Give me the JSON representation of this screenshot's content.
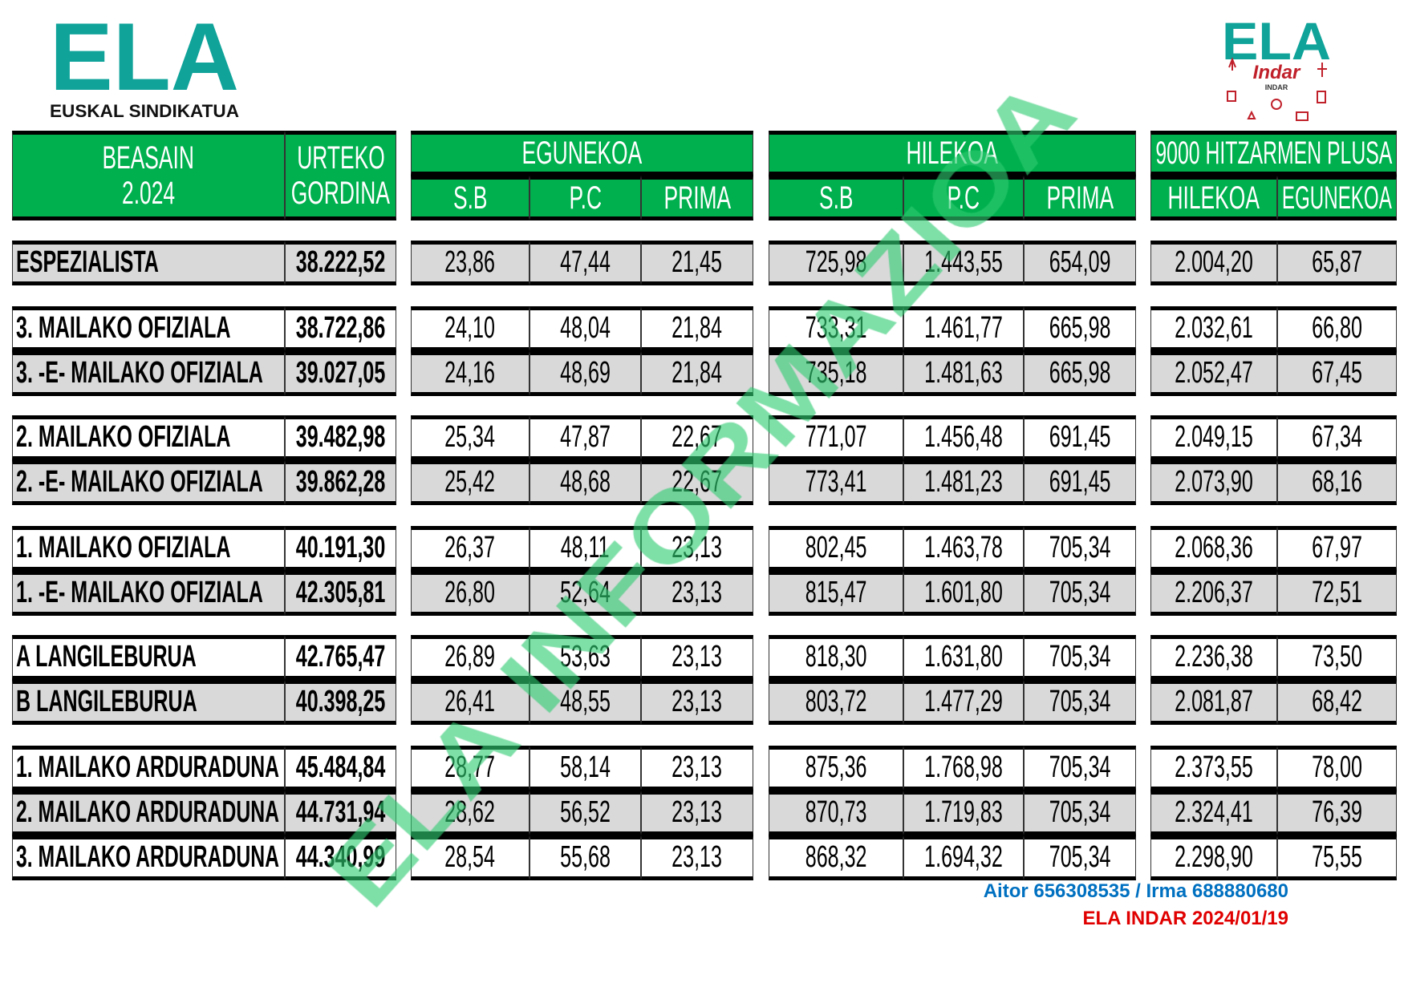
{
  "logo_left": {
    "text": "ELA",
    "subtitle": "EUSKAL SINDIKATUA"
  },
  "logo_right": {
    "text": "ELA",
    "subtitle": "Indar",
    "small": "INDAR"
  },
  "colors": {
    "header_green": "#00b04f",
    "logo_teal": "#0fa39a",
    "row_gray": "#d9d9d9",
    "watermark_green": "#2ecc71",
    "footer_blue": "#0070c0",
    "footer_red": "#e00000"
  },
  "header": {
    "group1": {
      "title_line1": "BEASAIN",
      "title_line2": "2.024",
      "col2_line1": "URTEKO",
      "col2_line2": "GORDINA"
    },
    "group2": {
      "title": "EGUNEKOA",
      "cols": [
        "S.B",
        "P.C",
        "PRIMA"
      ]
    },
    "group3": {
      "title": "HILEKOA",
      "cols": [
        "S.B",
        "P.C",
        "PRIMA"
      ]
    },
    "group4": {
      "title": "9000 HITZARMEN PLUSA",
      "cols": [
        "HILEKOA",
        "EGUNEKOA"
      ]
    }
  },
  "rows": [
    {
      "name": "ESPEZIALISTA",
      "urteko": "38.222,52",
      "eg": [
        "23,86",
        "47,44",
        "21,45"
      ],
      "hil": [
        "725,98",
        "1.443,55",
        "654,09"
      ],
      "plus": [
        "2.004,20",
        "65,87"
      ],
      "shade": "gray"
    },
    {
      "name": "3. MAILAKO OFIZIALA",
      "urteko": "38.722,86",
      "eg": [
        "24,10",
        "48,04",
        "21,84"
      ],
      "hil": [
        "733,31",
        "1.461,77",
        "665,98"
      ],
      "plus": [
        "2.032,61",
        "66,80"
      ],
      "shade": "white"
    },
    {
      "name": "3. -E- MAILAKO OFIZIALA",
      "urteko": "39.027,05",
      "eg": [
        "24,16",
        "48,69",
        "21,84"
      ],
      "hil": [
        "735,18",
        "1.481,63",
        "665,98"
      ],
      "plus": [
        "2.052,47",
        "67,45"
      ],
      "shade": "gray"
    },
    {
      "name": "2.  MAILAKO OFIZIALA",
      "urteko": "39.482,98",
      "eg": [
        "25,34",
        "47,87",
        "22,67"
      ],
      "hil": [
        "771,07",
        "1.456,48",
        "691,45"
      ],
      "plus": [
        "2.049,15",
        "67,34"
      ],
      "shade": "white"
    },
    {
      "name": "2. -E- MAILAKO OFIZIALA",
      "urteko": "39.862,28",
      "eg": [
        "25,42",
        "48,68",
        "22,67"
      ],
      "hil": [
        "773,41",
        "1.481,23",
        "691,45"
      ],
      "plus": [
        "2.073,90",
        "68,16"
      ],
      "shade": "gray"
    },
    {
      "name": "1. MAILAKO OFIZIALA",
      "urteko": "40.191,30",
      "eg": [
        "26,37",
        "48,11",
        "23,13"
      ],
      "hil": [
        "802,45",
        "1.463,78",
        "705,34"
      ],
      "plus": [
        "2.068,36",
        "67,97"
      ],
      "shade": "white"
    },
    {
      "name": "1. -E- MAILAKO OFIZIALA",
      "urteko": "42.305,81",
      "eg": [
        "26,80",
        "52,64",
        "23,13"
      ],
      "hil": [
        "815,47",
        "1.601,80",
        "705,34"
      ],
      "plus": [
        "2.206,37",
        "72,51"
      ],
      "shade": "gray"
    },
    {
      "name": "A LANGILEBURUA",
      "urteko": "42.765,47",
      "eg": [
        "26,89",
        "53,63",
        "23,13"
      ],
      "hil": [
        "818,30",
        "1.631,80",
        "705,34"
      ],
      "plus": [
        "2.236,38",
        "73,50"
      ],
      "shade": "white"
    },
    {
      "name": "B LANGILEBURUA",
      "urteko": "40.398,25",
      "eg": [
        "26,41",
        "48,55",
        "23,13"
      ],
      "hil": [
        "803,72",
        "1.477,29",
        "705,34"
      ],
      "plus": [
        "2.081,87",
        "68,42"
      ],
      "shade": "gray"
    },
    {
      "name": "1. MAILAKO ARDURADUNA",
      "urteko": "45.484,84",
      "eg": [
        "28,77",
        "58,14",
        "23,13"
      ],
      "hil": [
        "875,36",
        "1.768,98",
        "705,34"
      ],
      "plus": [
        "2.373,55",
        "78,00"
      ],
      "shade": "white"
    },
    {
      "name": "2. MAILAKO ARDURADUNA",
      "urteko": "44.731,94",
      "eg": [
        "28,62",
        "56,52",
        "23,13"
      ],
      "hil": [
        "870,73",
        "1.719,83",
        "705,34"
      ],
      "plus": [
        "2.324,41",
        "76,39"
      ],
      "shade": "gray"
    },
    {
      "name": "3. MAILAKO ARDURADUNA",
      "urteko": "44.340,99",
      "eg": [
        "28,54",
        "55,68",
        "23,13"
      ],
      "hil": [
        "868,32",
        "1.694,32",
        "705,34"
      ],
      "plus": [
        "2.298,90",
        "75,55"
      ],
      "shade": "white"
    }
  ],
  "footer": {
    "contacts": "Aitor 656308535 / Irma 688880680",
    "signature": "ELA INDAR 2024/01/19"
  },
  "watermark": "ELA INFORMAZIOA"
}
